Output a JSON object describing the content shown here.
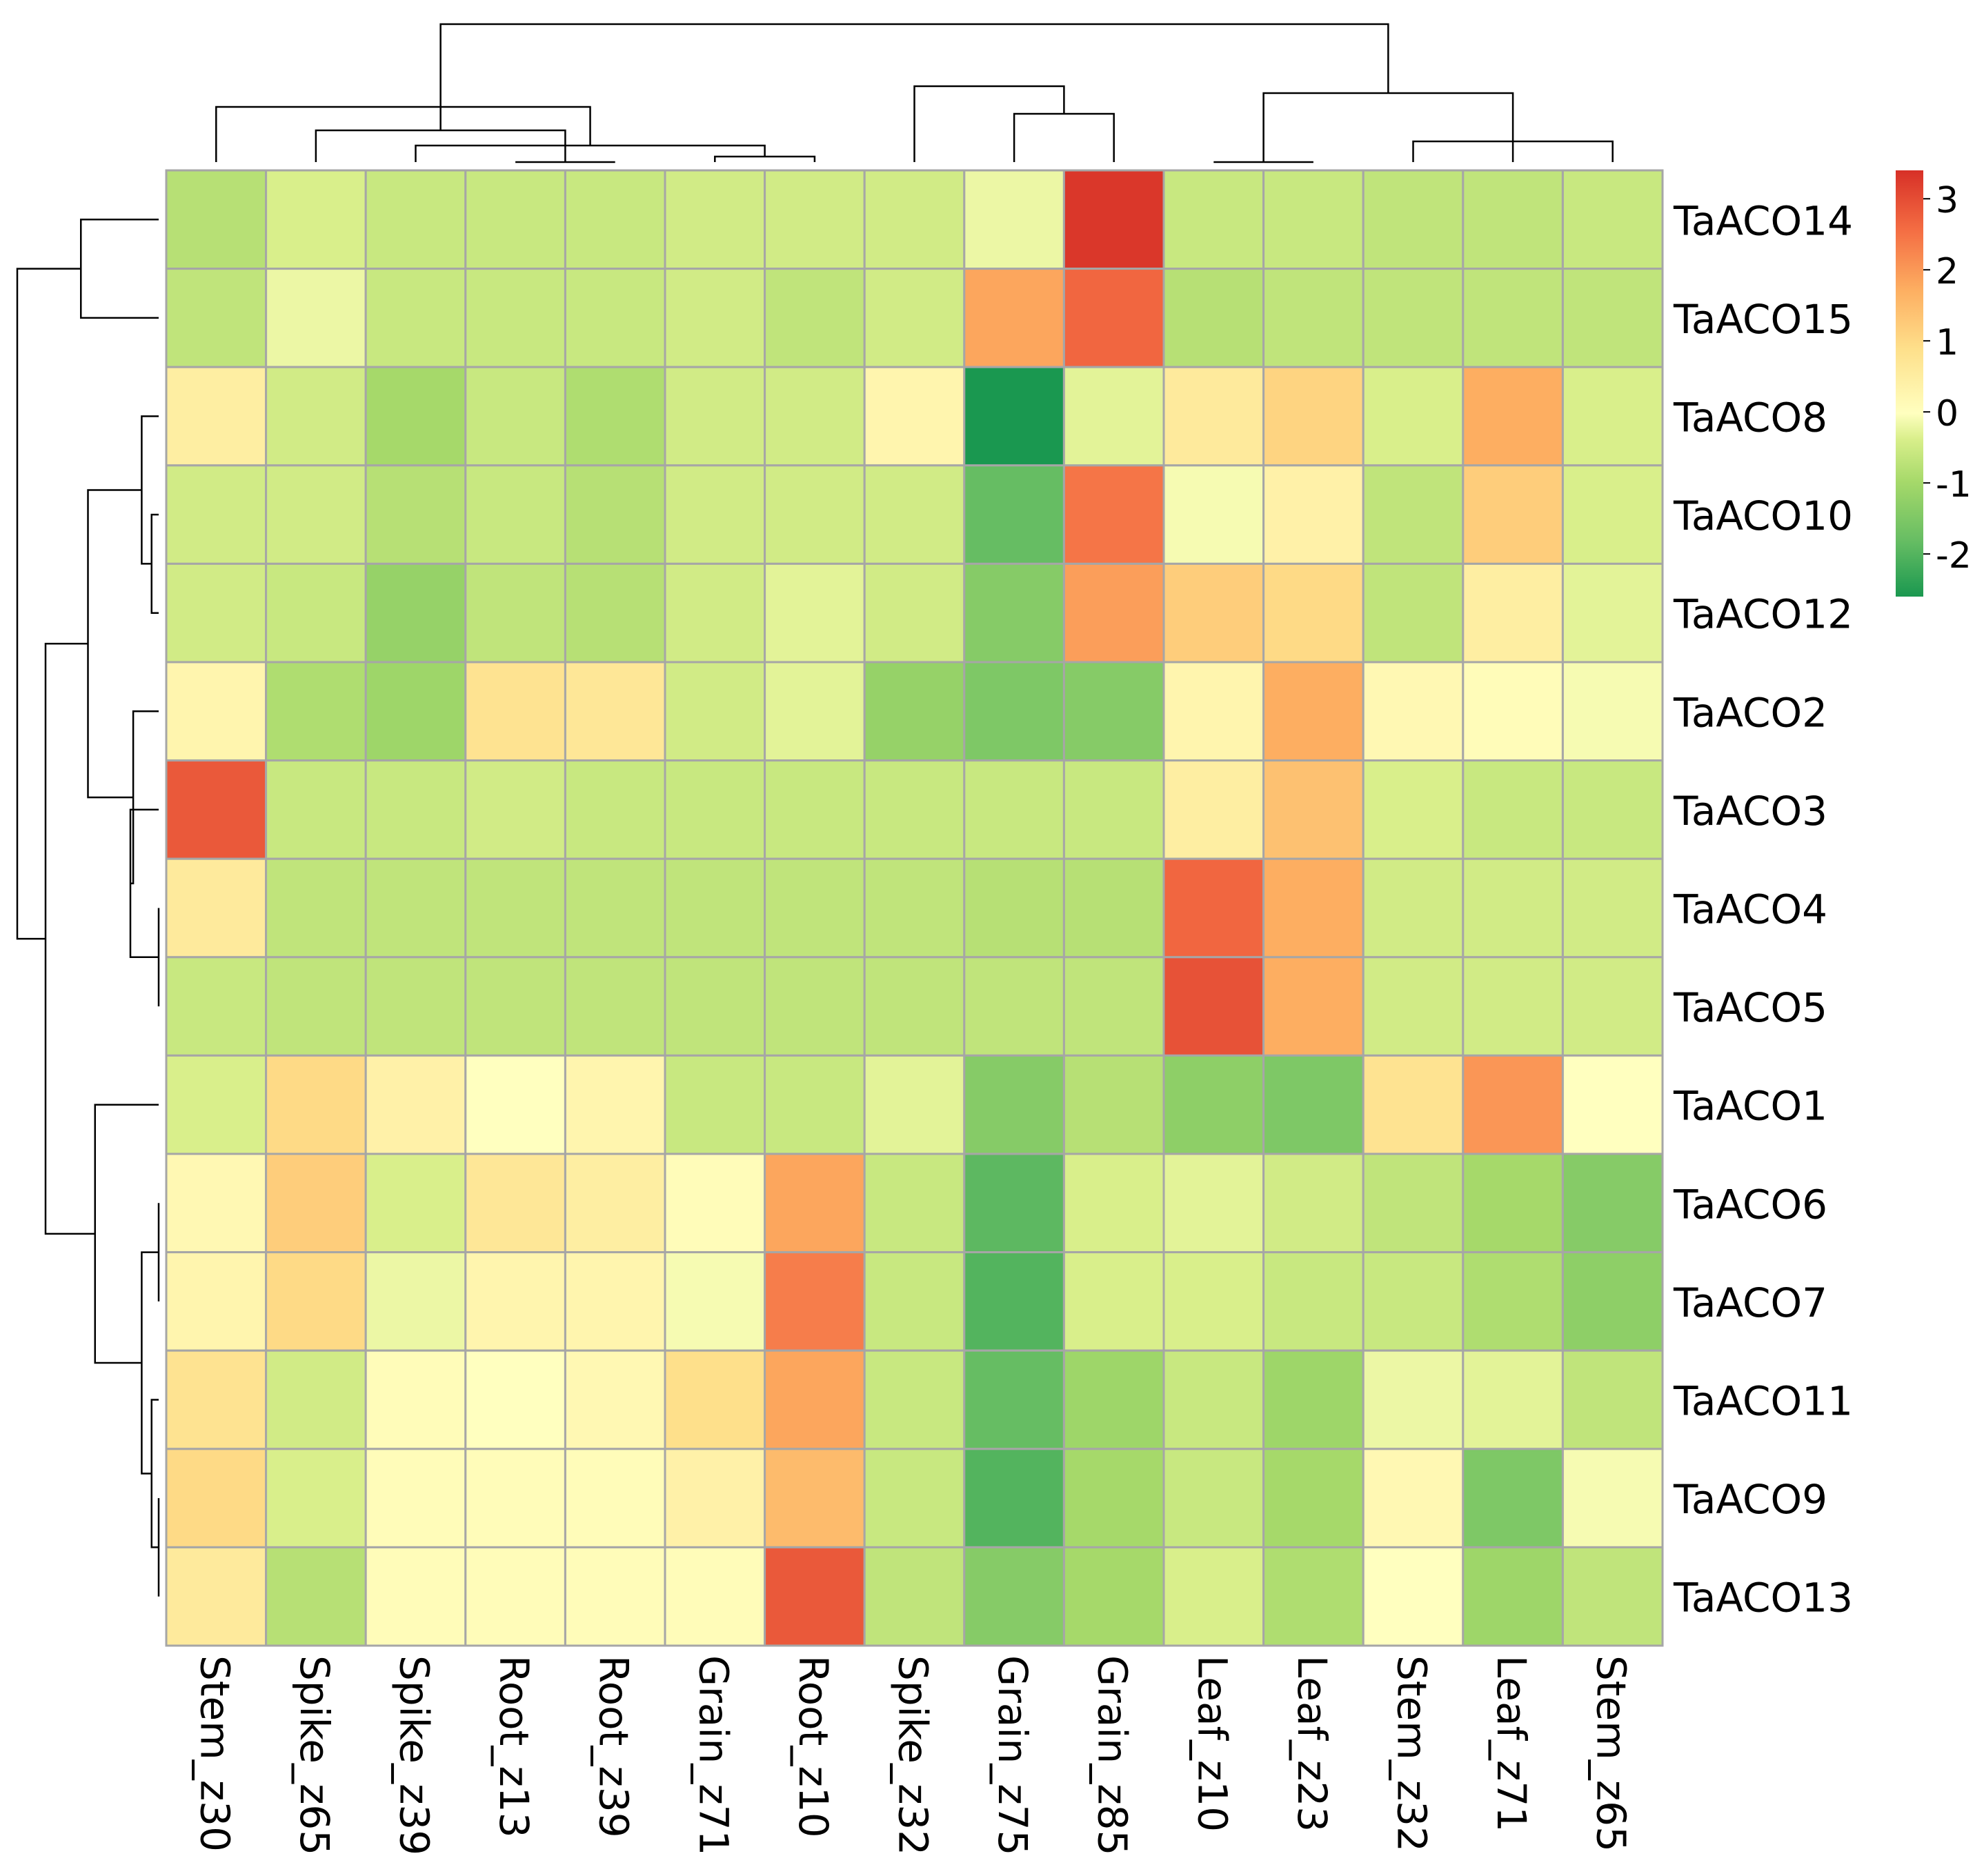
{
  "chart_data": {
    "type": "heatmap",
    "title": "",
    "columns": [
      "Stem_z30",
      "Spike_z65",
      "Spike_z39",
      "Root_z13",
      "Root_z39",
      "Grain_z71",
      "Root_z10",
      "Spike_z32",
      "Grain_z75",
      "Grain_z85",
      "Leaf_z10",
      "Leaf_z23",
      "Stem_z32",
      "Leaf_z71",
      "Stem_z65"
    ],
    "rows": [
      "TaACO14",
      "TaACO15",
      "TaACO8",
      "TaACO10",
      "TaACO12",
      "TaACO2",
      "TaACO3",
      "TaACO4",
      "TaACO5",
      "TaACO1",
      "TaACO6",
      "TaACO7",
      "TaACO11",
      "TaACO9",
      "TaACO13"
    ],
    "values": [
      [
        -0.8,
        -0.4,
        -0.6,
        -0.6,
        -0.6,
        -0.5,
        -0.5,
        -0.5,
        -0.2,
        3.3,
        -0.6,
        -0.6,
        -0.7,
        -0.7,
        -0.6
      ],
      [
        -0.7,
        -0.2,
        -0.6,
        -0.6,
        -0.6,
        -0.5,
        -0.7,
        -0.5,
        1.8,
        2.6,
        -0.8,
        -0.7,
        -0.7,
        -0.7,
        -0.7
      ],
      [
        0.5,
        -0.5,
        -1.0,
        -0.6,
        -0.9,
        -0.5,
        -0.5,
        0.3,
        -2.6,
        -0.3,
        0.6,
        1.1,
        -0.4,
        1.7,
        -0.4
      ],
      [
        -0.5,
        -0.5,
        -0.8,
        -0.6,
        -0.8,
        -0.5,
        -0.5,
        -0.5,
        -1.8,
        2.4,
        -0.1,
        0.4,
        -0.7,
        1.2,
        -0.4
      ],
      [
        -0.5,
        -0.6,
        -1.2,
        -0.7,
        -0.8,
        -0.5,
        -0.3,
        -0.5,
        -1.4,
        1.9,
        1.2,
        1.0,
        -0.7,
        0.5,
        -0.3
      ],
      [
        0.3,
        -0.9,
        -1.1,
        0.8,
        0.7,
        -0.5,
        -0.3,
        -1.2,
        -1.5,
        -1.4,
        0.3,
        1.7,
        0.2,
        0.1,
        -0.1
      ],
      [
        2.8,
        -0.6,
        -0.6,
        -0.5,
        -0.6,
        -0.6,
        -0.6,
        -0.6,
        -0.6,
        -0.6,
        0.5,
        1.4,
        -0.4,
        -0.6,
        -0.6
      ],
      [
        0.6,
        -0.7,
        -0.7,
        -0.7,
        -0.7,
        -0.7,
        -0.7,
        -0.7,
        -0.8,
        -0.8,
        2.6,
        1.7,
        -0.5,
        -0.5,
        -0.5
      ],
      [
        -0.6,
        -0.7,
        -0.7,
        -0.7,
        -0.7,
        -0.7,
        -0.7,
        -0.7,
        -0.7,
        -0.7,
        2.9,
        1.7,
        -0.5,
        -0.5,
        -0.5
      ],
      [
        -0.4,
        1.0,
        0.4,
        0.0,
        0.3,
        -0.6,
        -0.6,
        -0.3,
        -1.4,
        -0.8,
        -1.3,
        -1.5,
        0.8,
        2.0,
        0.0
      ],
      [
        0.2,
        1.2,
        -0.4,
        0.7,
        0.5,
        0.1,
        1.8,
        -0.6,
        -1.9,
        -0.4,
        -0.3,
        -0.5,
        -0.7,
        -1.0,
        -1.4
      ],
      [
        0.3,
        1.0,
        -0.2,
        0.3,
        0.3,
        -0.1,
        2.3,
        -0.6,
        -2.0,
        -0.4,
        -0.4,
        -0.6,
        -0.6,
        -0.9,
        -1.3
      ],
      [
        0.8,
        -0.5,
        0.1,
        0.0,
        0.2,
        0.9,
        1.8,
        -0.6,
        -1.8,
        -1.1,
        -0.6,
        -1.1,
        -0.2,
        -0.3,
        -0.7
      ],
      [
        1.0,
        -0.4,
        0.1,
        0.1,
        0.1,
        0.4,
        1.5,
        -0.6,
        -2.0,
        -1.0,
        -0.6,
        -1.0,
        0.2,
        -1.5,
        -0.1
      ],
      [
        0.6,
        -0.8,
        0.1,
        0.1,
        0.1,
        0.1,
        2.8,
        -0.7,
        -1.4,
        -1.0,
        -0.4,
        -0.9,
        0.0,
        -1.1,
        -0.7
      ]
    ],
    "legend": {
      "position": "right",
      "ticks": [
        3,
        2,
        1,
        0,
        -1,
        -2
      ],
      "tick_labels": [
        "3",
        "2",
        "1",
        "0",
        "-1",
        "-2"
      ],
      "range": [
        -2.6,
        3.4
      ]
    },
    "colors": {
      "low": "#1a9850",
      "mid": "#ffffbf",
      "high": "#d73027",
      "grid": "#a6a6a6",
      "tree": "#000000"
    },
    "col_tree": [
      [
        0,
        0,
        1,
        0.44
      ],
      [
        1,
        1,
        7,
        0.27
      ],
      [
        2,
        2,
        4,
        0.16
      ],
      [
        3,
        5,
        6,
        0.96
      ],
      [
        4,
        3,
        4,
        0.98
      ],
      [
        5,
        2,
        9,
        0.75
      ],
      [
        6,
        8,
        9,
        0.5
      ],
      [
        7,
        10,
        11,
        0.98
      ],
      [
        8,
        12,
        14,
        0.75
      ],
      [
        9,
        13,
        15,
        0.45
      ],
      [
        10,
        16,
        18,
        0.57
      ],
      [
        11,
        7,
        20,
        0.45
      ],
      [
        12,
        19,
        21,
        0.15
      ],
      [
        13,
        22,
        23,
        0.0
      ],
      [
        14,
        17,
        24,
        0.03
      ]
    ],
    "row_tree": [
      [
        0,
        0,
        1,
        0.2
      ],
      [
        1,
        2,
        4,
        0.19
      ],
      [
        2,
        3,
        17,
        0.17
      ],
      [
        3,
        5,
        6,
        0.17
      ],
      [
        4,
        7,
        8,
        0.02
      ],
      [
        5,
        21,
        22,
        0.34
      ],
      [
        6,
        12,
        14,
        0.15
      ],
      [
        7,
        9,
        10,
        0.14
      ],
      [
        8,
        11,
        28,
        0.19
      ],
      [
        9,
        29,
        30,
        0.17
      ],
      [
        10,
        13,
        31,
        0.23
      ],
      [
        11,
        20,
        26,
        0.32
      ],
      [
        12,
        25,
        32,
        0.31
      ],
      [
        13,
        27,
        33,
        0.33
      ],
      [
        14,
        34,
        35,
        0.5
      ],
      [
        15,
        36,
        37,
        0.93
      ],
      [
        16,
        0,
        0,
        0
      ]
    ]
  }
}
